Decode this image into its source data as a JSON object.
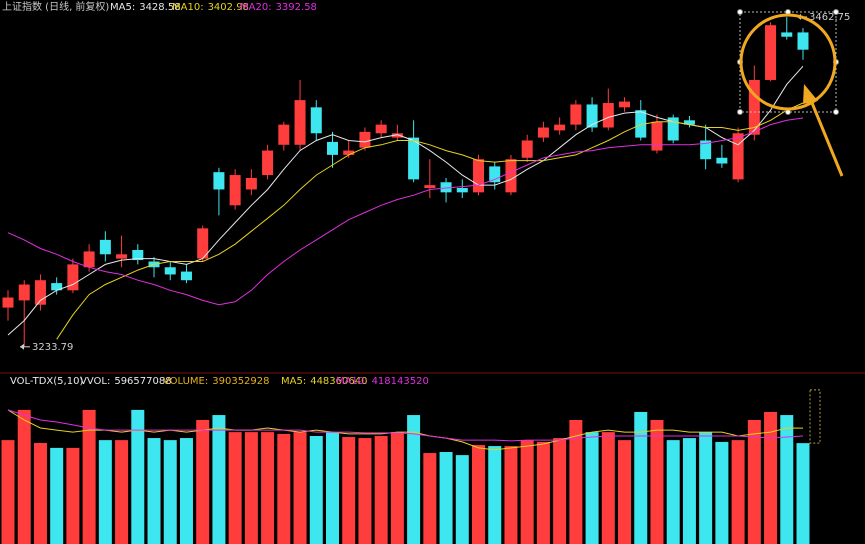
{
  "chart_data": [
    {
      "type": "candlestick",
      "title": "上证指数 (日线, 前复权)",
      "open": [
        3261,
        3266,
        3263,
        3278,
        3273,
        3289,
        3308,
        3295,
        3301,
        3293,
        3289,
        3286,
        3295,
        3355,
        3332,
        3343,
        3353,
        3374,
        3374,
        3400,
        3376,
        3367,
        3372,
        3382,
        3379,
        3379,
        3344,
        3348,
        3344,
        3341,
        3359,
        3341,
        3365,
        3379,
        3384,
        3388,
        3402,
        3386,
        3400,
        3398,
        3370,
        3393,
        3391,
        3377,
        3365,
        3350,
        3381,
        3419,
        3452,
        3452
      ],
      "close": [
        3268,
        3277,
        3280,
        3273,
        3291,
        3300,
        3298,
        3298,
        3294,
        3289,
        3284,
        3280,
        3316,
        3343,
        3353,
        3351,
        3370,
        3388,
        3405,
        3382,
        3367,
        3370,
        3383,
        3388,
        3382,
        3350,
        3346,
        3341,
        3341,
        3364,
        3348,
        3364,
        3377,
        3386,
        3388,
        3402,
        3386,
        3403,
        3404,
        3379,
        3390,
        3377,
        3388,
        3364,
        3361,
        3382,
        3419,
        3457,
        3449,
        3440
      ],
      "high": [
        3273,
        3280,
        3284,
        3282,
        3295,
        3305,
        3314,
        3311,
        3305,
        3296,
        3293,
        3291,
        3318,
        3358,
        3357,
        3357,
        3374,
        3390,
        3419,
        3405,
        3383,
        3377,
        3386,
        3391,
        3388,
        3391,
        3364,
        3351,
        3350,
        3367,
        3362,
        3367,
        3381,
        3390,
        3393,
        3405,
        3407,
        3413,
        3407,
        3405,
        3395,
        3395,
        3394,
        3388,
        3374,
        3386,
        3429,
        3459,
        3462.75,
        3455
      ],
      "low": [
        3252,
        3233.79,
        3259,
        3270,
        3271,
        3286,
        3293,
        3289,
        3291,
        3282,
        3280,
        3278,
        3293,
        3325,
        3329,
        3339,
        3350,
        3370,
        3370,
        3377,
        3358,
        3365,
        3370,
        3379,
        3377,
        3348,
        3337,
        3334,
        3337,
        3339,
        3343,
        3339,
        3362,
        3376,
        3381,
        3384,
        3383,
        3384,
        3397,
        3377,
        3368,
        3375,
        3386,
        3357,
        3358,
        3348,
        3377,
        3418,
        3447,
        3433
      ],
      "up_color": "#ff3d3d",
      "down_color": "#3ee6f0",
      "series": [
        {
          "name": "MA5:",
          "value_label": "3428.58",
          "color": "#e8e8e8",
          "values": [
            3242,
            3252,
            3266,
            3273,
            3277,
            3284,
            3291,
            3294,
            3295,
            3295,
            3293,
            3291,
            3295,
            3308,
            3320,
            3332,
            3343,
            3357,
            3370,
            3377,
            3381,
            3377,
            3376,
            3379,
            3381,
            3377,
            3370,
            3362,
            3353,
            3346,
            3346,
            3350,
            3357,
            3363,
            3372,
            3381,
            3388,
            3393,
            3396,
            3397,
            3393,
            3390,
            3388,
            3386,
            3379,
            3374,
            3384,
            3398,
            3416,
            3428.58
          ]
        },
        {
          "name": "MA10:",
          "value_label": "3402.98",
          "color": "#e6d21e",
          "values": [
            null,
            null,
            null,
            3239,
            3256,
            3270,
            3277,
            3282,
            3287,
            3291,
            3293,
            3293,
            3293,
            3298,
            3305,
            3314,
            3323,
            3332,
            3343,
            3353,
            3360,
            3367,
            3372,
            3374,
            3377,
            3377,
            3374,
            3370,
            3367,
            3363,
            3362,
            3363,
            3363,
            3363,
            3365,
            3367,
            3372,
            3377,
            3383,
            3388,
            3390,
            3390,
            3388,
            3386,
            3386,
            3384,
            3386,
            3391,
            3398,
            3402.98
          ]
        },
        {
          "name": "MA20:",
          "value_label": "3392.58",
          "color": "#e030e0",
          "values": [
            3313,
            3308,
            3302,
            3298,
            3293,
            3289,
            3286,
            3284,
            3280,
            3277,
            3273,
            3270,
            3266,
            3263,
            3265,
            3273,
            3284,
            3293,
            3301,
            3308,
            3315,
            3322,
            3327,
            3332,
            3336,
            3339,
            3343,
            3344,
            3345,
            3346,
            3350,
            3355,
            3360,
            3365,
            3367,
            3369,
            3370,
            3372,
            3373,
            3374,
            3374,
            3374,
            3374,
            3375,
            3377,
            3379,
            3383,
            3388,
            3391,
            3392.58
          ]
        }
      ],
      "annotations": [
        {
          "value": 3233.79,
          "label": "3233.79"
        },
        {
          "value": 3462.75,
          "label": "3462.75"
        }
      ],
      "ylim": [
        3216.3,
        3474.5
      ]
    },
    {
      "type": "bar",
      "title": "VOL-TDX(5,10)",
      "values": [
        402000000,
        519000000,
        391000000,
        372000000,
        372000000,
        519000000,
        402000000,
        402000000,
        519000000,
        410000000,
        402000000,
        410000000,
        480000000,
        499000000,
        433000000,
        433000000,
        433000000,
        426000000,
        433000000,
        418000000,
        433000000,
        414000000,
        410000000,
        418000000,
        433000000,
        499000000,
        352000000,
        356000000,
        344000000,
        383000000,
        379000000,
        379000000,
        402000000,
        395000000,
        410000000,
        480000000,
        433000000,
        433000000,
        402000000,
        511000000,
        480000000,
        402000000,
        410000000,
        433000000,
        395000000,
        402000000,
        480000000,
        511000000,
        499000000,
        390352928
      ],
      "legend": [
        {
          "name": "VVOL:",
          "label": "596577088",
          "color": "#e8e8e8"
        },
        {
          "name": "VOLUME:",
          "label": "390352928",
          "color": "#e6b01e"
        }
      ],
      "vvol": 596577088,
      "series": [
        {
          "name": "MA5:",
          "value_label": "448360640",
          "color": "#e6d21e",
          "values": [
            519000000,
            480000000,
            449000000,
            441000000,
            433000000,
            441000000,
            441000000,
            433000000,
            441000000,
            433000000,
            441000000,
            433000000,
            441000000,
            449000000,
            441000000,
            441000000,
            449000000,
            441000000,
            433000000,
            441000000,
            433000000,
            426000000,
            426000000,
            426000000,
            433000000,
            433000000,
            418000000,
            410000000,
            395000000,
            372000000,
            364000000,
            372000000,
            379000000,
            387000000,
            402000000,
            418000000,
            433000000,
            441000000,
            433000000,
            433000000,
            441000000,
            441000000,
            433000000,
            433000000,
            433000000,
            418000000,
            426000000,
            433000000,
            449000000,
            448360640
          ]
        },
        {
          "name": "MA10:",
          "value_label": "418143520",
          "color": "#e030e0",
          "values": [
            519000000,
            499000000,
            480000000,
            472000000,
            461000000,
            449000000,
            441000000,
            441000000,
            441000000,
            441000000,
            441000000,
            441000000,
            441000000,
            441000000,
            441000000,
            441000000,
            441000000,
            441000000,
            441000000,
            433000000,
            433000000,
            433000000,
            430000000,
            430000000,
            430000000,
            426000000,
            418000000,
            410000000,
            402000000,
            402000000,
            402000000,
            399000000,
            402000000,
            402000000,
            402000000,
            410000000,
            414000000,
            418000000,
            418000000,
            418000000,
            418000000,
            418000000,
            418000000,
            418000000,
            418000000,
            418000000,
            414000000,
            410000000,
            414000000,
            418143520
          ]
        }
      ],
      "ylim": [
        0,
        596000000
      ]
    }
  ]
}
